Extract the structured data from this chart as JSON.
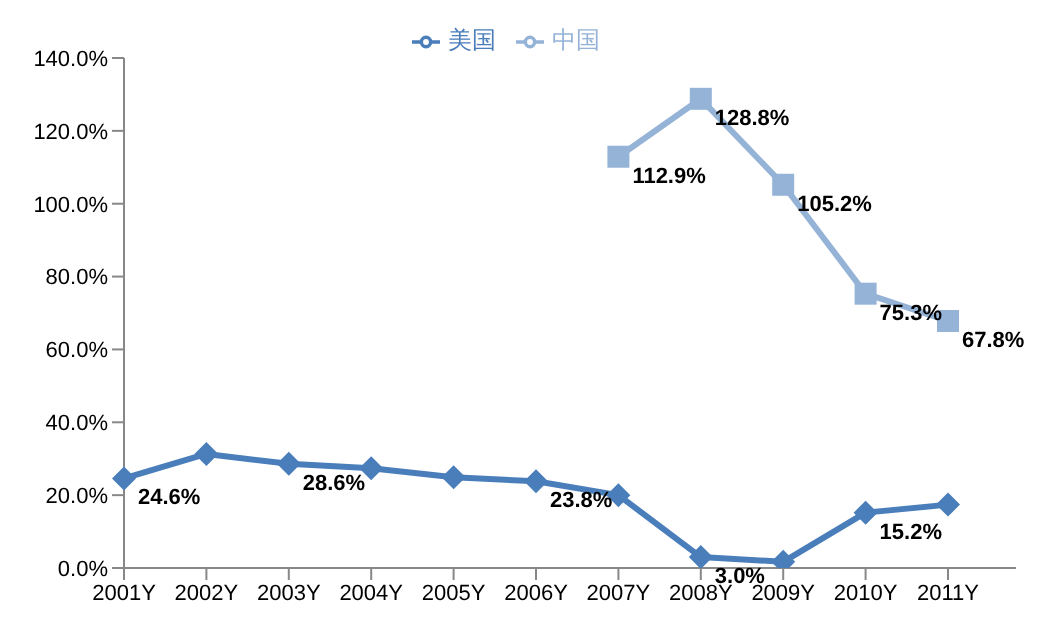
{
  "chart_data": {
    "type": "line",
    "categories": [
      "2001Y",
      "2002Y",
      "2003Y",
      "2004Y",
      "2005Y",
      "2006Y",
      "2007Y",
      "2008Y",
      "2009Y",
      "2010Y",
      "2011Y"
    ],
    "series": [
      {
        "name": "美国",
        "color": "#4a7ebb",
        "marker": "diamond",
        "values": [
          24.6,
          31.3,
          28.6,
          27.4,
          24.9,
          23.8,
          20.0,
          3.0,
          1.7,
          15.2,
          17.4
        ],
        "value_labels": [
          "24.6%",
          null,
          "28.6%",
          null,
          null,
          "23.8%",
          null,
          "3.0%",
          null,
          "15.2%",
          null
        ]
      },
      {
        "name": "中国",
        "color": "#95b3d7",
        "marker": "square",
        "values": [
          null,
          null,
          null,
          null,
          null,
          null,
          112.9,
          128.8,
          105.2,
          75.3,
          67.8
        ],
        "value_labels": [
          null,
          null,
          null,
          null,
          null,
          null,
          "112.9%",
          "128.8%",
          "105.2%",
          "75.3%",
          "67.8%"
        ]
      }
    ],
    "ylim": [
      0,
      140
    ],
    "yticks": [
      {
        "value": 0,
        "label": "0.0%"
      },
      {
        "value": 20,
        "label": "20.0%"
      },
      {
        "value": 40,
        "label": "40.0%"
      },
      {
        "value": 60,
        "label": "60.0%"
      },
      {
        "value": 80,
        "label": "80.0%"
      },
      {
        "value": 100,
        "label": "100.0%"
      },
      {
        "value": 120,
        "label": "120.0%"
      },
      {
        "value": 140,
        "label": "140.0%"
      }
    ],
    "grid": false,
    "legend": "top",
    "line_style": "solid"
  }
}
